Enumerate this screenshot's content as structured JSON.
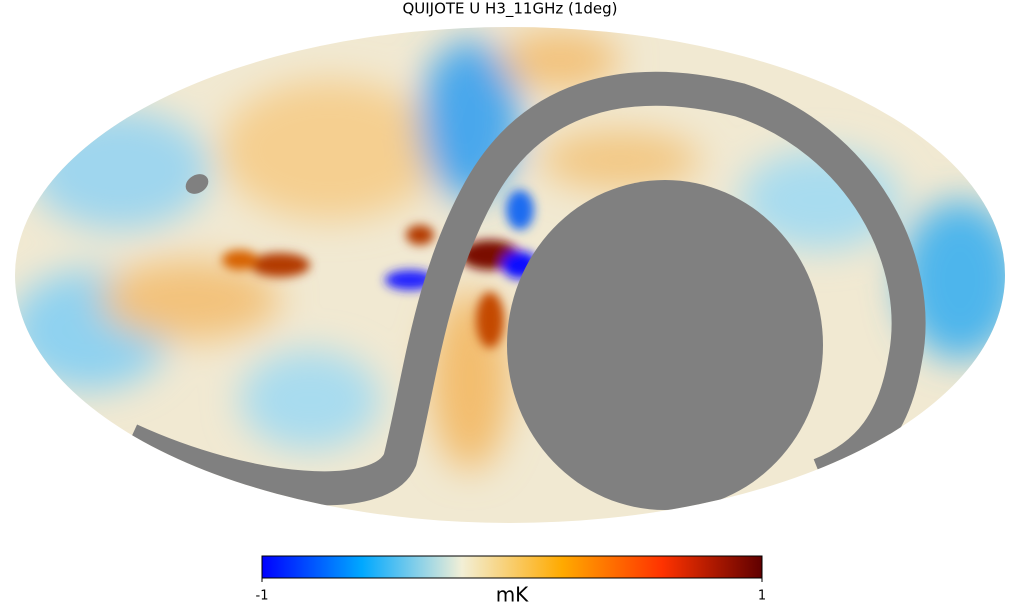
{
  "title": "QUIJOTE U H3_11GHz (1deg)",
  "colorbar": {
    "label": "mK",
    "lim": [
      -1,
      1
    ],
    "ticks": [
      -1,
      1
    ],
    "colors": [
      "#0000ff",
      "#00a8ff",
      "#f2efd6",
      "#ffaa00",
      "#ff3300",
      "#600000"
    ]
  }
}
